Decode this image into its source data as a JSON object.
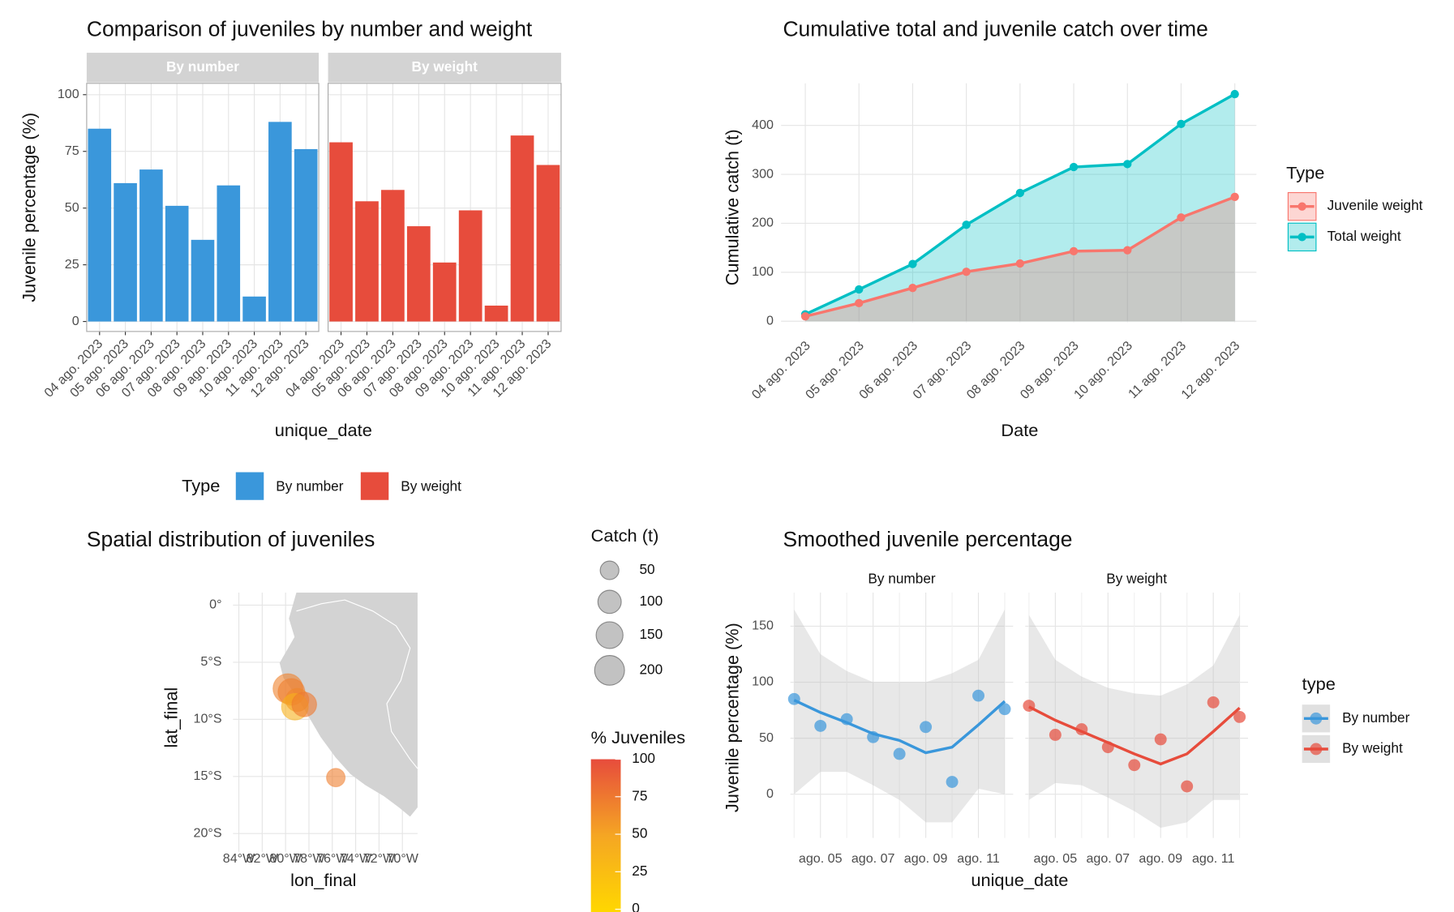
{
  "chart_data": [
    {
      "type": "bar",
      "title": "Comparison of juveniles by number and weight",
      "x_label": "unique_date",
      "y_label": "Juvenile percentage (%)",
      "categories": [
        "04 ago. 2023",
        "05 ago. 2023",
        "06 ago. 2023",
        "07 ago. 2023",
        "08 ago. 2023",
        "09 ago. 2023",
        "10 ago. 2023",
        "11 ago. 2023",
        "12 ago. 2023"
      ],
      "series": [
        {
          "name": "By number",
          "color": "#3a97db",
          "values": [
            85,
            61,
            67,
            51,
            36,
            60,
            11,
            88,
            76
          ]
        },
        {
          "name": "By weight",
          "color": "#e74c3c",
          "values": [
            79,
            53,
            58,
            42,
            26,
            49,
            7,
            82,
            69
          ]
        }
      ],
      "ylim": [
        -4.4,
        105
      ],
      "yticks": [
        0,
        25,
        50,
        75,
        100
      ],
      "legend_title": "Type",
      "legend": "bottom"
    },
    {
      "type": "area",
      "title": "Cumulative total and juvenile catch over time",
      "x_label": "Date",
      "y_label": "Cumulative catch (t)",
      "categories": [
        "04 ago. 2023",
        "05 ago. 2023",
        "06 ago. 2023",
        "07 ago. 2023",
        "08 ago. 2023",
        "09 ago. 2023",
        "10 ago. 2023",
        "11 ago. 2023",
        "12 ago. 2023"
      ],
      "series": [
        {
          "name": "Juvenile weight",
          "color": "#f8766d",
          "values": [
            10,
            37,
            68,
            101,
            118,
            143,
            145,
            212,
            254
          ]
        },
        {
          "name": "Total weight",
          "color": "#00bfc4",
          "values": [
            14,
            65,
            117,
            197,
            262,
            315,
            321,
            403,
            464
          ]
        }
      ],
      "ylim": [
        -2,
        486
      ],
      "yticks": [
        0,
        100,
        200,
        300,
        400
      ],
      "legend_title": "Type",
      "legend": "right"
    },
    {
      "type": "scatter",
      "title": "Spatial distribution of juveniles",
      "x_label": "lon_final",
      "y_label": "lat_final",
      "x": [
        -79.8,
        -79.5,
        -79.0,
        -79.2,
        -78.4,
        -75.7
      ],
      "values": [
        -7.3,
        -7.6,
        -8.3,
        -8.9,
        -8.7,
        -15.1
      ],
      "sizes": [
        200,
        150,
        100,
        150,
        120,
        50
      ],
      "pct_juveniles": [
        70,
        72,
        68,
        40,
        75,
        72
      ],
      "xlim": [
        -84.5,
        -68.7
      ],
      "ylim": [
        -21.6,
        1.1
      ],
      "xticks": [
        {
          "value": -84,
          "label": "84°W"
        },
        {
          "value": -82,
          "label": "82°W"
        },
        {
          "value": -80,
          "label": "80°W"
        },
        {
          "value": -78,
          "label": "78°W"
        },
        {
          "value": -76,
          "label": "76°W"
        },
        {
          "value": -74,
          "label": "74°W"
        },
        {
          "value": -72,
          "label": "72°W"
        },
        {
          "value": -70,
          "label": "70°W"
        }
      ],
      "yticks": [
        {
          "value": 0,
          "label": "0°"
        },
        {
          "value": -5,
          "label": "5°S"
        },
        {
          "value": -10,
          "label": "10°S"
        },
        {
          "value": -15,
          "label": "15°S"
        },
        {
          "value": -20,
          "label": "20°S"
        }
      ],
      "size_title": "Catch (t)",
      "size_ticks": [
        50,
        100,
        150,
        200
      ],
      "color_title": "% Juveniles",
      "colorlim": [
        0,
        100
      ],
      "color_ticks": [
        0,
        25,
        50,
        75,
        100
      ]
    },
    {
      "type": "smooth",
      "title": "Smoothed juvenile percentage",
      "x_label": "unique_date",
      "y_label": "Juvenile percentage (%)",
      "categories": [
        null,
        "ago. 05",
        null,
        "ago. 07",
        null,
        "ago. 09",
        null,
        "ago. 11",
        null
      ],
      "series": [
        {
          "name": "By number",
          "color": "#3a97db",
          "values": [
            85,
            61,
            67,
            51,
            36,
            60,
            11,
            88,
            76
          ],
          "smooth": [
            84,
            73,
            64,
            54,
            48,
            37,
            42,
            62,
            83
          ],
          "lower": [
            0,
            20,
            20,
            8,
            -5,
            -25,
            -25,
            5,
            0
          ],
          "upper": [
            165,
            125,
            110,
            100,
            100,
            100,
            108,
            120,
            165
          ]
        },
        {
          "name": "By weight",
          "color": "#e74c3c",
          "values": [
            79,
            53,
            58,
            42,
            26,
            49,
            7,
            82,
            69
          ],
          "smooth": [
            78,
            66,
            56,
            46,
            36,
            27,
            36,
            56,
            77
          ],
          "lower": [
            -5,
            10,
            8,
            -3,
            -15,
            -30,
            -25,
            -5,
            -5
          ],
          "upper": [
            160,
            120,
            105,
            95,
            90,
            88,
            98,
            115,
            160
          ]
        }
      ],
      "ylim": [
        -39,
        180
      ],
      "yticks": [
        0,
        50,
        100,
        150
      ],
      "legend_title": "type",
      "legend": "right"
    }
  ]
}
